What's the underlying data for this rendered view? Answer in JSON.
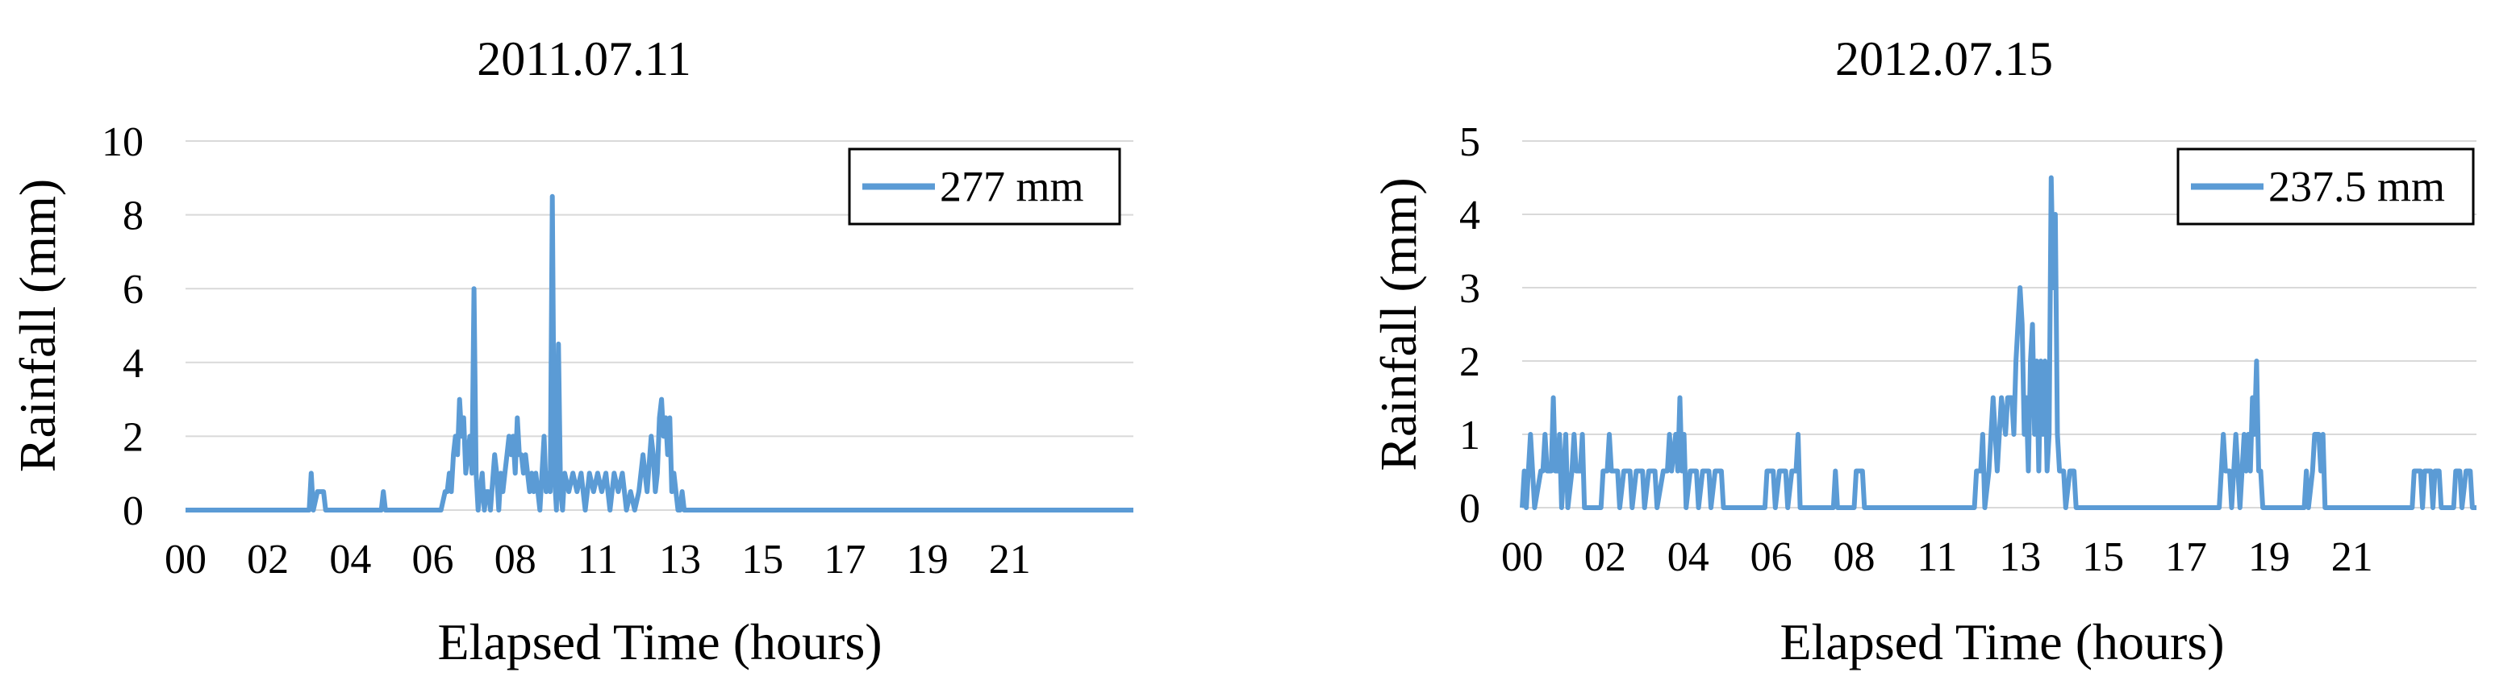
{
  "chart_data": [
    {
      "type": "line",
      "title": "2011.07.11",
      "xlabel": "Elapsed Time (hours)",
      "ylabel": "Rainfall (mm)",
      "xlim": [
        0,
        23
      ],
      "ylim": [
        0,
        10
      ],
      "yticks": [
        "0",
        "2",
        "4",
        "6",
        "8",
        "10"
      ],
      "xticks": [
        "00",
        "02",
        "04",
        "06",
        "08",
        "11",
        "13",
        "15",
        "17",
        "19",
        "21"
      ],
      "grid": "horizontal",
      "legend_position": "top-right",
      "series": [
        {
          "name": "277 mm",
          "color": "#5b9bd5",
          "points": [
            [
              0,
              0
            ],
            [
              3.0,
              0
            ],
            [
              3.05,
              1.0
            ],
            [
              3.1,
              0
            ],
            [
              3.2,
              0.5
            ],
            [
              3.35,
              0.5
            ],
            [
              3.4,
              0
            ],
            [
              4.75,
              0
            ],
            [
              4.8,
              0.5
            ],
            [
              4.85,
              0
            ],
            [
              6.2,
              0
            ],
            [
              6.3,
              0.5
            ],
            [
              6.35,
              0.5
            ],
            [
              6.4,
              1.0
            ],
            [
              6.45,
              0.5
            ],
            [
              6.5,
              1.5
            ],
            [
              6.55,
              2.0
            ],
            [
              6.6,
              1.5
            ],
            [
              6.65,
              3.0
            ],
            [
              6.7,
              2.0
            ],
            [
              6.75,
              2.5
            ],
            [
              6.8,
              1.0
            ],
            [
              6.85,
              1.5
            ],
            [
              6.9,
              2.0
            ],
            [
              6.95,
              1.0
            ],
            [
              7.0,
              6.0
            ],
            [
              7.05,
              1.0
            ],
            [
              7.1,
              0
            ],
            [
              7.15,
              0.5
            ],
            [
              7.2,
              1.0
            ],
            [
              7.25,
              0
            ],
            [
              7.3,
              0.5
            ],
            [
              7.35,
              0.5
            ],
            [
              7.4,
              0
            ],
            [
              7.5,
              1.5
            ],
            [
              7.55,
              1.0
            ],
            [
              7.6,
              0
            ],
            [
              7.65,
              1.0
            ],
            [
              7.7,
              0.5
            ],
            [
              7.75,
              1.0
            ],
            [
              7.8,
              1.5
            ],
            [
              7.85,
              2.0
            ],
            [
              7.9,
              1.5
            ],
            [
              7.95,
              2.0
            ],
            [
              8.0,
              1.0
            ],
            [
              8.05,
              2.5
            ],
            [
              8.1,
              1.5
            ],
            [
              8.15,
              1.5
            ],
            [
              8.2,
              1.0
            ],
            [
              8.25,
              1.5
            ],
            [
              8.3,
              1.0
            ],
            [
              8.35,
              0.5
            ],
            [
              8.4,
              1.0
            ],
            [
              8.45,
              0.5
            ],
            [
              8.5,
              1.0
            ],
            [
              8.55,
              0.5
            ],
            [
              8.6,
              0
            ],
            [
              8.65,
              1.0
            ],
            [
              8.7,
              2.0
            ],
            [
              8.75,
              0.5
            ],
            [
              8.8,
              1.0
            ],
            [
              8.85,
              0.5
            ],
            [
              8.9,
              8.5
            ],
            [
              8.95,
              1.0
            ],
            [
              9.0,
              0
            ],
            [
              9.05,
              4.5
            ],
            [
              9.1,
              0.5
            ],
            [
              9.15,
              0
            ],
            [
              9.2,
              1.0
            ],
            [
              9.3,
              0.5
            ],
            [
              9.4,
              1.0
            ],
            [
              9.5,
              0.5
            ],
            [
              9.6,
              1.0
            ],
            [
              9.7,
              0
            ],
            [
              9.8,
              1.0
            ],
            [
              9.9,
              0.5
            ],
            [
              10.0,
              1.0
            ],
            [
              10.1,
              0.5
            ],
            [
              10.2,
              1.0
            ],
            [
              10.3,
              0
            ],
            [
              10.4,
              1.0
            ],
            [
              10.5,
              0.5
            ],
            [
              10.6,
              1.0
            ],
            [
              10.7,
              0
            ],
            [
              10.8,
              0.5
            ],
            [
              10.9,
              0
            ],
            [
              11.0,
              0.5
            ],
            [
              11.1,
              1.5
            ],
            [
              11.15,
              1.0
            ],
            [
              11.2,
              0.5
            ],
            [
              11.3,
              2.0
            ],
            [
              11.35,
              1.5
            ],
            [
              11.4,
              0.5
            ],
            [
              11.45,
              1.0
            ],
            [
              11.5,
              2.5
            ],
            [
              11.55,
              3.0
            ],
            [
              11.6,
              2.0
            ],
            [
              11.65,
              2.5
            ],
            [
              11.7,
              1.5
            ],
            [
              11.75,
              2.5
            ],
            [
              11.8,
              0.5
            ],
            [
              11.85,
              1.0
            ],
            [
              11.9,
              0.5
            ],
            [
              11.95,
              0
            ],
            [
              12.0,
              0
            ],
            [
              12.05,
              0.5
            ],
            [
              12.1,
              0
            ],
            [
              23,
              0
            ]
          ]
        }
      ]
    },
    {
      "type": "line",
      "title": "2012.07.15",
      "xlabel": "Elapsed Time (hours)",
      "ylabel": "Rainfall (mm)",
      "xlim": [
        0,
        23
      ],
      "ylim": [
        0,
        5
      ],
      "yticks": [
        "0",
        "1",
        "2",
        "3",
        "4",
        "5"
      ],
      "xticks": [
        "00",
        "02",
        "04",
        "06",
        "08",
        "11",
        "13",
        "15",
        "17",
        "19",
        "21"
      ],
      "grid": "horizontal",
      "legend_position": "top-right",
      "series": [
        {
          "name": "237.5 mm",
          "color": "#5b9bd5",
          "points": [
            [
              0,
              0
            ],
            [
              0.05,
              0.5
            ],
            [
              0.1,
              0
            ],
            [
              0.15,
              0.5
            ],
            [
              0.2,
              1.0
            ],
            [
              0.25,
              0.5
            ],
            [
              0.3,
              0
            ],
            [
              0.45,
              0.5
            ],
            [
              0.5,
              0.5
            ],
            [
              0.55,
              1.0
            ],
            [
              0.6,
              0.5
            ],
            [
              0.7,
              0.5
            ],
            [
              0.75,
              1.5
            ],
            [
              0.8,
              0.5
            ],
            [
              0.85,
              0.5
            ],
            [
              0.9,
              1.0
            ],
            [
              0.95,
              0
            ],
            [
              1.0,
              0.5
            ],
            [
              1.05,
              1.0
            ],
            [
              1.1,
              0
            ],
            [
              1.2,
              0.5
            ],
            [
              1.25,
              1.0
            ],
            [
              1.3,
              0.5
            ],
            [
              1.4,
              0.5
            ],
            [
              1.45,
              1.0
            ],
            [
              1.5,
              0
            ],
            [
              1.9,
              0
            ],
            [
              1.95,
              0.5
            ],
            [
              2.05,
              0.5
            ],
            [
              2.1,
              1.0
            ],
            [
              2.15,
              0.5
            ],
            [
              2.3,
              0.5
            ],
            [
              2.35,
              0
            ],
            [
              2.45,
              0.5
            ],
            [
              2.6,
              0.5
            ],
            [
              2.65,
              0
            ],
            [
              2.75,
              0.5
            ],
            [
              2.9,
              0.5
            ],
            [
              2.95,
              0
            ],
            [
              3.05,
              0.5
            ],
            [
              3.2,
              0.5
            ],
            [
              3.25,
              0
            ],
            [
              3.4,
              0.5
            ],
            [
              3.5,
              0.5
            ],
            [
              3.55,
              1.0
            ],
            [
              3.6,
              0.5
            ],
            [
              3.7,
              1.0
            ],
            [
              3.75,
              0.5
            ],
            [
              3.8,
              1.5
            ],
            [
              3.85,
              0.5
            ],
            [
              3.9,
              1.0
            ],
            [
              3.95,
              0
            ],
            [
              4.05,
              0.5
            ],
            [
              4.2,
              0.5
            ],
            [
              4.25,
              0
            ],
            [
              4.35,
              0.5
            ],
            [
              4.5,
              0.5
            ],
            [
              4.55,
              0
            ],
            [
              4.65,
              0.5
            ],
            [
              4.8,
              0.5
            ],
            [
              4.85,
              0
            ],
            [
              5.85,
              0
            ],
            [
              5.9,
              0.5
            ],
            [
              6.05,
              0.5
            ],
            [
              6.1,
              0
            ],
            [
              6.2,
              0.5
            ],
            [
              6.35,
              0.5
            ],
            [
              6.4,
              0
            ],
            [
              6.5,
              0.5
            ],
            [
              6.6,
              0.5
            ],
            [
              6.65,
              1.0
            ],
            [
              6.7,
              0
            ],
            [
              7.5,
              0
            ],
            [
              7.55,
              0.5
            ],
            [
              7.6,
              0
            ],
            [
              8.0,
              0
            ],
            [
              8.05,
              0.5
            ],
            [
              8.2,
              0.5
            ],
            [
              8.25,
              0
            ],
            [
              10.9,
              0
            ],
            [
              10.95,
              0.5
            ],
            [
              11.05,
              0.5
            ],
            [
              11.1,
              1.0
            ],
            [
              11.15,
              0
            ],
            [
              11.25,
              0.5
            ],
            [
              11.35,
              1.5
            ],
            [
              11.4,
              1.0
            ],
            [
              11.45,
              0.5
            ],
            [
              11.5,
              1.0
            ],
            [
              11.55,
              1.5
            ],
            [
              11.65,
              1.0
            ],
            [
              11.7,
              1.5
            ],
            [
              11.8,
              1.5
            ],
            [
              11.85,
              1.0
            ],
            [
              11.9,
              2.0
            ],
            [
              11.95,
              2.5
            ],
            [
              12.0,
              3.0
            ],
            [
              12.05,
              2.5
            ],
            [
              12.1,
              1.0
            ],
            [
              12.15,
              1.5
            ],
            [
              12.2,
              0.5
            ],
            [
              12.25,
              2.0
            ],
            [
              12.3,
              2.5
            ],
            [
              12.35,
              1.0
            ],
            [
              12.4,
              2.0
            ],
            [
              12.45,
              0.5
            ],
            [
              12.5,
              2.0
            ],
            [
              12.55,
              1.0
            ],
            [
              12.6,
              2.0
            ],
            [
              12.65,
              0.5
            ],
            [
              12.7,
              1.0
            ],
            [
              12.75,
              4.5
            ],
            [
              12.8,
              3.0
            ],
            [
              12.85,
              4.0
            ],
            [
              12.9,
              1.0
            ],
            [
              12.95,
              0.5
            ],
            [
              13.05,
              0.5
            ],
            [
              13.1,
              0
            ],
            [
              13.2,
              0.5
            ],
            [
              13.3,
              0.5
            ],
            [
              13.35,
              0
            ],
            [
              16.8,
              0
            ],
            [
              16.85,
              0.5
            ],
            [
              16.9,
              1.0
            ],
            [
              16.95,
              0.5
            ],
            [
              17.05,
              0.5
            ],
            [
              17.1,
              0
            ],
            [
              17.15,
              0.5
            ],
            [
              17.2,
              1.0
            ],
            [
              17.25,
              0.5
            ],
            [
              17.3,
              0
            ],
            [
              17.35,
              0.5
            ],
            [
              17.4,
              1.0
            ],
            [
              17.45,
              0.5
            ],
            [
              17.5,
              1.0
            ],
            [
              17.55,
              0.5
            ],
            [
              17.6,
              1.5
            ],
            [
              17.65,
              1.0
            ],
            [
              17.7,
              2.0
            ],
            [
              17.75,
              0.5
            ],
            [
              17.8,
              0.5
            ],
            [
              17.85,
              0
            ],
            [
              18.85,
              0
            ],
            [
              18.9,
              0.5
            ],
            [
              18.95,
              0
            ],
            [
              19.05,
              0.5
            ],
            [
              19.1,
              1.0
            ],
            [
              19.2,
              1.0
            ],
            [
              19.25,
              0.5
            ],
            [
              19.3,
              1.0
            ],
            [
              19.35,
              0
            ],
            [
              21.45,
              0
            ],
            [
              21.5,
              0.5
            ],
            [
              21.65,
              0.5
            ],
            [
              21.7,
              0
            ],
            [
              21.75,
              0.5
            ],
            [
              21.9,
              0.5
            ],
            [
              21.95,
              0
            ],
            [
              22.0,
              0.5
            ],
            [
              22.1,
              0.5
            ],
            [
              22.15,
              0
            ],
            [
              22.45,
              0
            ],
            [
              22.5,
              0.5
            ],
            [
              22.6,
              0.5
            ],
            [
              22.65,
              0
            ],
            [
              22.75,
              0.5
            ],
            [
              22.85,
              0.5
            ],
            [
              22.9,
              0
            ],
            [
              23,
              0
            ]
          ]
        }
      ]
    }
  ]
}
